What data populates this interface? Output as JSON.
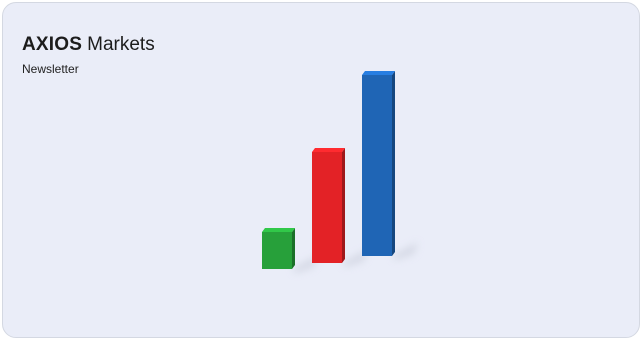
{
  "brand": {
    "logo_text": "AXIOS",
    "product": "Markets",
    "subtitle": "Newsletter"
  },
  "illustration": {
    "type": "3d-bar-icon",
    "bars": [
      {
        "name": "green-bar",
        "color": "#27a03a",
        "level": 0.22
      },
      {
        "name": "red-bar",
        "color": "#e32226",
        "level": 0.62
      },
      {
        "name": "blue-bar",
        "color": "#1f65b5",
        "level": 1.0
      }
    ]
  }
}
